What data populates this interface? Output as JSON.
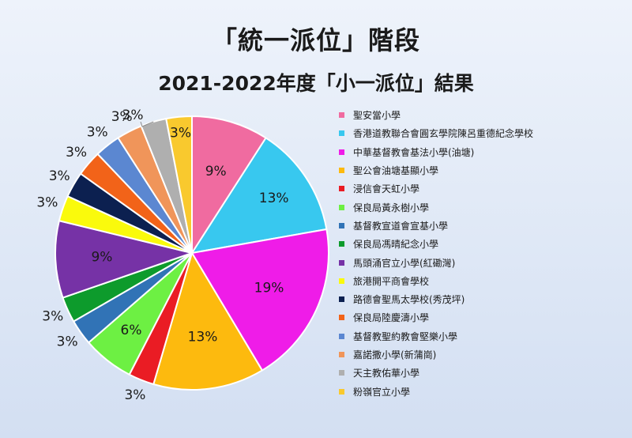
{
  "chart_data": {
    "type": "pie",
    "title": "「統一派位」階段",
    "subtitle": "2021-2022年度「小一派位」結果",
    "slices": [
      {
        "label": "聖安當小學",
        "value": 9,
        "value_label": "9%",
        "color": "#f06ba0"
      },
      {
        "label": "香港道教聯合會圓玄學院陳呂重德紀念學校",
        "value": 13,
        "value_label": "13%",
        "color": "#38c8ef"
      },
      {
        "label": "中華基督教會基法小學(油塘)",
        "value": 19,
        "value_label": "19%",
        "color": "#ef1ce8"
      },
      {
        "label": "聖公會油塘基顯小學",
        "value": 13,
        "value_label": "13%",
        "color": "#fdba0e"
      },
      {
        "label": "浸信會天虹小學",
        "value": 3,
        "value_label": "3%",
        "color": "#ea1c24"
      },
      {
        "label": "保良局黃永樹小學",
        "value": 6,
        "value_label": "6%",
        "color": "#6df043"
      },
      {
        "label": "基督教宣道會宣基小學",
        "value": 3,
        "value_label": "3%",
        "color": "#3173b6"
      },
      {
        "label": "保良局馮晴紀念小學",
        "value": 3,
        "value_label": "3%",
        "color": "#0d9b2c"
      },
      {
        "label": "馬頭涌官立小學(紅磡灣)",
        "value": 9,
        "value_label": "9%",
        "color": "#7632a6"
      },
      {
        "label": "旅港開平商會學校",
        "value": 3,
        "value_label": "3%",
        "color": "#fafa0c"
      },
      {
        "label": "路德會聖馬太學校(秀茂坪)",
        "value": 3,
        "value_label": "3%",
        "color": "#0c2050"
      },
      {
        "label": "保良局陸慶濤小學",
        "value": 3,
        "value_label": "3%",
        "color": "#f26319"
      },
      {
        "label": "基督教聖約教會堅樂小學",
        "value": 3,
        "value_label": "3%",
        "color": "#5b87d1"
      },
      {
        "label": "嘉諾撒小學(新蒲崗)",
        "value": 3,
        "value_label": "3%",
        "color": "#f0955a"
      },
      {
        "label": "天主教佑華小學",
        "value": 3,
        "value_label": "3%",
        "color": "#afafaf"
      },
      {
        "label": "粉嶺官立小學",
        "value": 3,
        "value_label": "3%",
        "color": "#f9c92e"
      }
    ],
    "legend_position": "right"
  }
}
